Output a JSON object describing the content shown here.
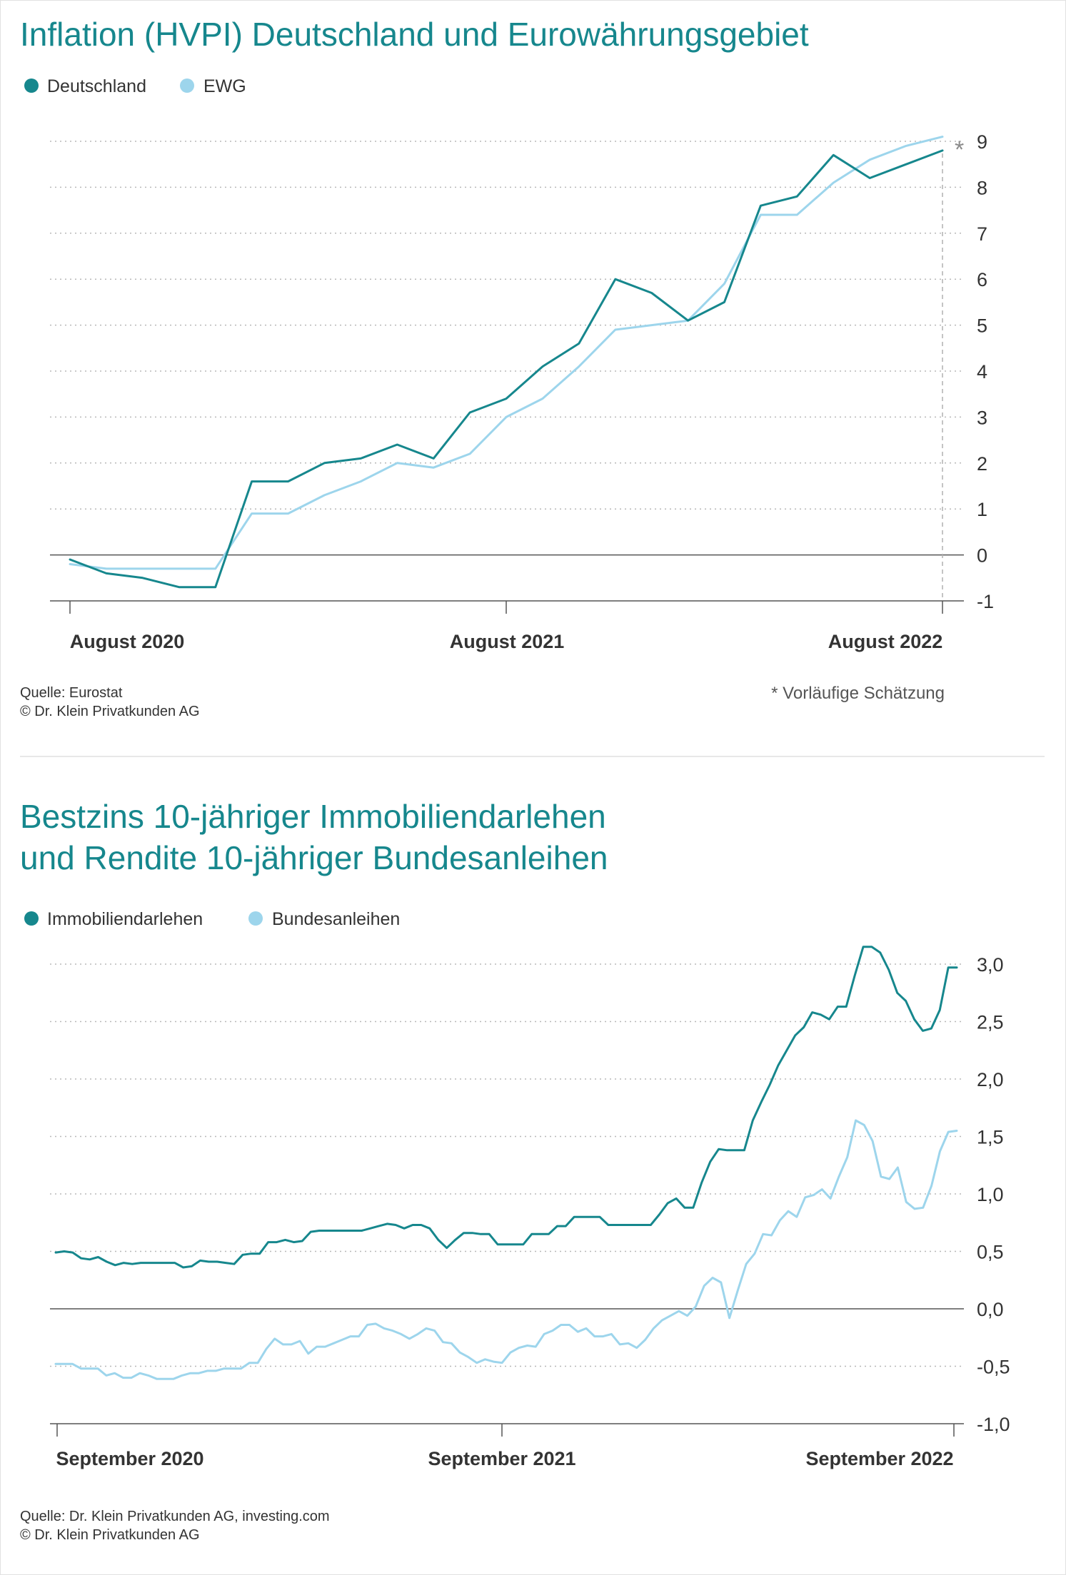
{
  "colors": {
    "accent": "#16878d",
    "light": "#9dd5ec",
    "text": "#333333"
  },
  "divider": true,
  "chart_data": [
    {
      "type": "line",
      "title": "Inflation (HVPI) Deutschland und Eurowährungsgebiet",
      "subtitle": "",
      "xlabel": "",
      "ylabel": "",
      "ylim": [
        -1,
        9
      ],
      "y_ticks": [
        "9",
        "8",
        "7",
        "6",
        "5",
        "4",
        "3",
        "2",
        "1",
        "0",
        "-1"
      ],
      "x_ticks": [
        "August 2020",
        "August 2021",
        "August 2022"
      ],
      "x": [
        "2020-08",
        "2020-09",
        "2020-10",
        "2020-11",
        "2020-12",
        "2021-01",
        "2021-02",
        "2021-03",
        "2021-04",
        "2021-05",
        "2021-06",
        "2021-07",
        "2021-08",
        "2021-09",
        "2021-10",
        "2021-11",
        "2021-12",
        "2022-01",
        "2022-02",
        "2022-03",
        "2022-04",
        "2022-05",
        "2022-06",
        "2022-07",
        "2022-08"
      ],
      "series": [
        {
          "name": "Deutschland",
          "color": "#16878d",
          "values": [
            -0.1,
            -0.4,
            -0.5,
            -0.7,
            -0.7,
            1.6,
            1.6,
            2.0,
            2.1,
            2.4,
            2.1,
            3.1,
            3.4,
            4.1,
            4.6,
            6.0,
            5.7,
            5.1,
            5.5,
            7.6,
            7.8,
            8.7,
            8.2,
            8.5,
            8.8
          ]
        },
        {
          "name": "EWG",
          "color": "#9dd5ec",
          "values": [
            -0.2,
            -0.3,
            -0.3,
            -0.3,
            -0.3,
            0.9,
            0.9,
            1.3,
            1.6,
            2.0,
            1.9,
            2.2,
            3.0,
            3.4,
            4.1,
            4.9,
            5.0,
            5.1,
            5.9,
            7.4,
            7.4,
            8.1,
            8.6,
            8.9,
            9.1
          ]
        }
      ],
      "estimate_marker": "*",
      "source": "Quelle: Eurostat",
      "copyright": "© Dr. Klein Privatkunden AG",
      "footnote": "*  Vorläufige Schätzung",
      "grid": true,
      "legend": "top-left"
    },
    {
      "type": "line",
      "title": "Bestzins 10-jähriger Immobiliendarlehen",
      "title_line2": "und Rendite 10-jähriger Bundesanleihen",
      "xlabel": "",
      "ylabel": "",
      "ylim": [
        -1.0,
        3.0
      ],
      "y_ticks": [
        "3,0",
        "2,5",
        "2,0",
        "1,5",
        "1,0",
        "0,5",
        "0,0",
        "-0,5",
        "-1,0"
      ],
      "x_ticks": [
        "September 2020",
        "September 2021",
        "September 2022"
      ],
      "x_range": [
        "2020-09",
        "2022-09"
      ],
      "series": [
        {
          "name": "Immobiliendarlehen",
          "color": "#16878d",
          "values": [
            0.49,
            0.5,
            0.49,
            0.44,
            0.43,
            0.45,
            0.41,
            0.38,
            0.4,
            0.39,
            0.4,
            0.4,
            0.4,
            0.4,
            0.4,
            0.36,
            0.37,
            0.42,
            0.41,
            0.41,
            0.4,
            0.39,
            0.47,
            0.48,
            0.48,
            0.58,
            0.58,
            0.6,
            0.58,
            0.59,
            0.67,
            0.68,
            0.68,
            0.68,
            0.68,
            0.68,
            0.68,
            0.7,
            0.72,
            0.74,
            0.73,
            0.7,
            0.73,
            0.73,
            0.7,
            0.6,
            0.53,
            0.6,
            0.66,
            0.66,
            0.65,
            0.65,
            0.56,
            0.56,
            0.56,
            0.56,
            0.65,
            0.65,
            0.65,
            0.72,
            0.72,
            0.8,
            0.8,
            0.8,
            0.8,
            0.73,
            0.73,
            0.73,
            0.73,
            0.73,
            0.73,
            0.82,
            0.92,
            0.96,
            0.88,
            0.88,
            1.1,
            1.28,
            1.39,
            1.38,
            1.38,
            1.38,
            1.64,
            1.8,
            1.95,
            2.12,
            2.25,
            2.38,
            2.45,
            2.58,
            2.56,
            2.52,
            2.63,
            2.63,
            2.9,
            3.15,
            3.15,
            3.1,
            2.95,
            2.75,
            2.68,
            2.52,
            2.42,
            2.44,
            2.6,
            2.97,
            2.97
          ]
        },
        {
          "name": "Bundesanleihen",
          "color": "#9dd5ec",
          "values": [
            -0.48,
            -0.48,
            -0.48,
            -0.52,
            -0.52,
            -0.52,
            -0.58,
            -0.56,
            -0.6,
            -0.6,
            -0.56,
            -0.58,
            -0.61,
            -0.61,
            -0.61,
            -0.58,
            -0.56,
            -0.56,
            -0.54,
            -0.54,
            -0.52,
            -0.52,
            -0.52,
            -0.47,
            -0.47,
            -0.35,
            -0.26,
            -0.31,
            -0.31,
            -0.28,
            -0.39,
            -0.33,
            -0.33,
            -0.3,
            -0.27,
            -0.24,
            -0.24,
            -0.14,
            -0.13,
            -0.17,
            -0.19,
            -0.22,
            -0.26,
            -0.22,
            -0.17,
            -0.19,
            -0.29,
            -0.3,
            -0.38,
            -0.42,
            -0.47,
            -0.44,
            -0.46,
            -0.47,
            -0.38,
            -0.34,
            -0.32,
            -0.33,
            -0.22,
            -0.19,
            -0.14,
            -0.14,
            -0.2,
            -0.17,
            -0.24,
            -0.24,
            -0.22,
            -0.31,
            -0.3,
            -0.34,
            -0.27,
            -0.17,
            -0.1,
            -0.06,
            -0.02,
            -0.06,
            0.02,
            0.2,
            0.27,
            0.23,
            -0.08,
            0.16,
            0.39,
            0.48,
            0.65,
            0.64,
            0.77,
            0.85,
            0.8,
            0.97,
            0.99,
            1.04,
            0.96,
            1.15,
            1.32,
            1.64,
            1.6,
            1.46,
            1.15,
            1.13,
            1.23,
            0.93,
            0.87,
            0.88,
            1.07,
            1.37,
            1.54,
            1.55
          ]
        }
      ],
      "source": "Quelle: Dr. Klein Privatkunden AG, investing.com",
      "copyright": "© Dr. Klein Privatkunden AG",
      "grid": true,
      "legend": "top-left"
    }
  ]
}
